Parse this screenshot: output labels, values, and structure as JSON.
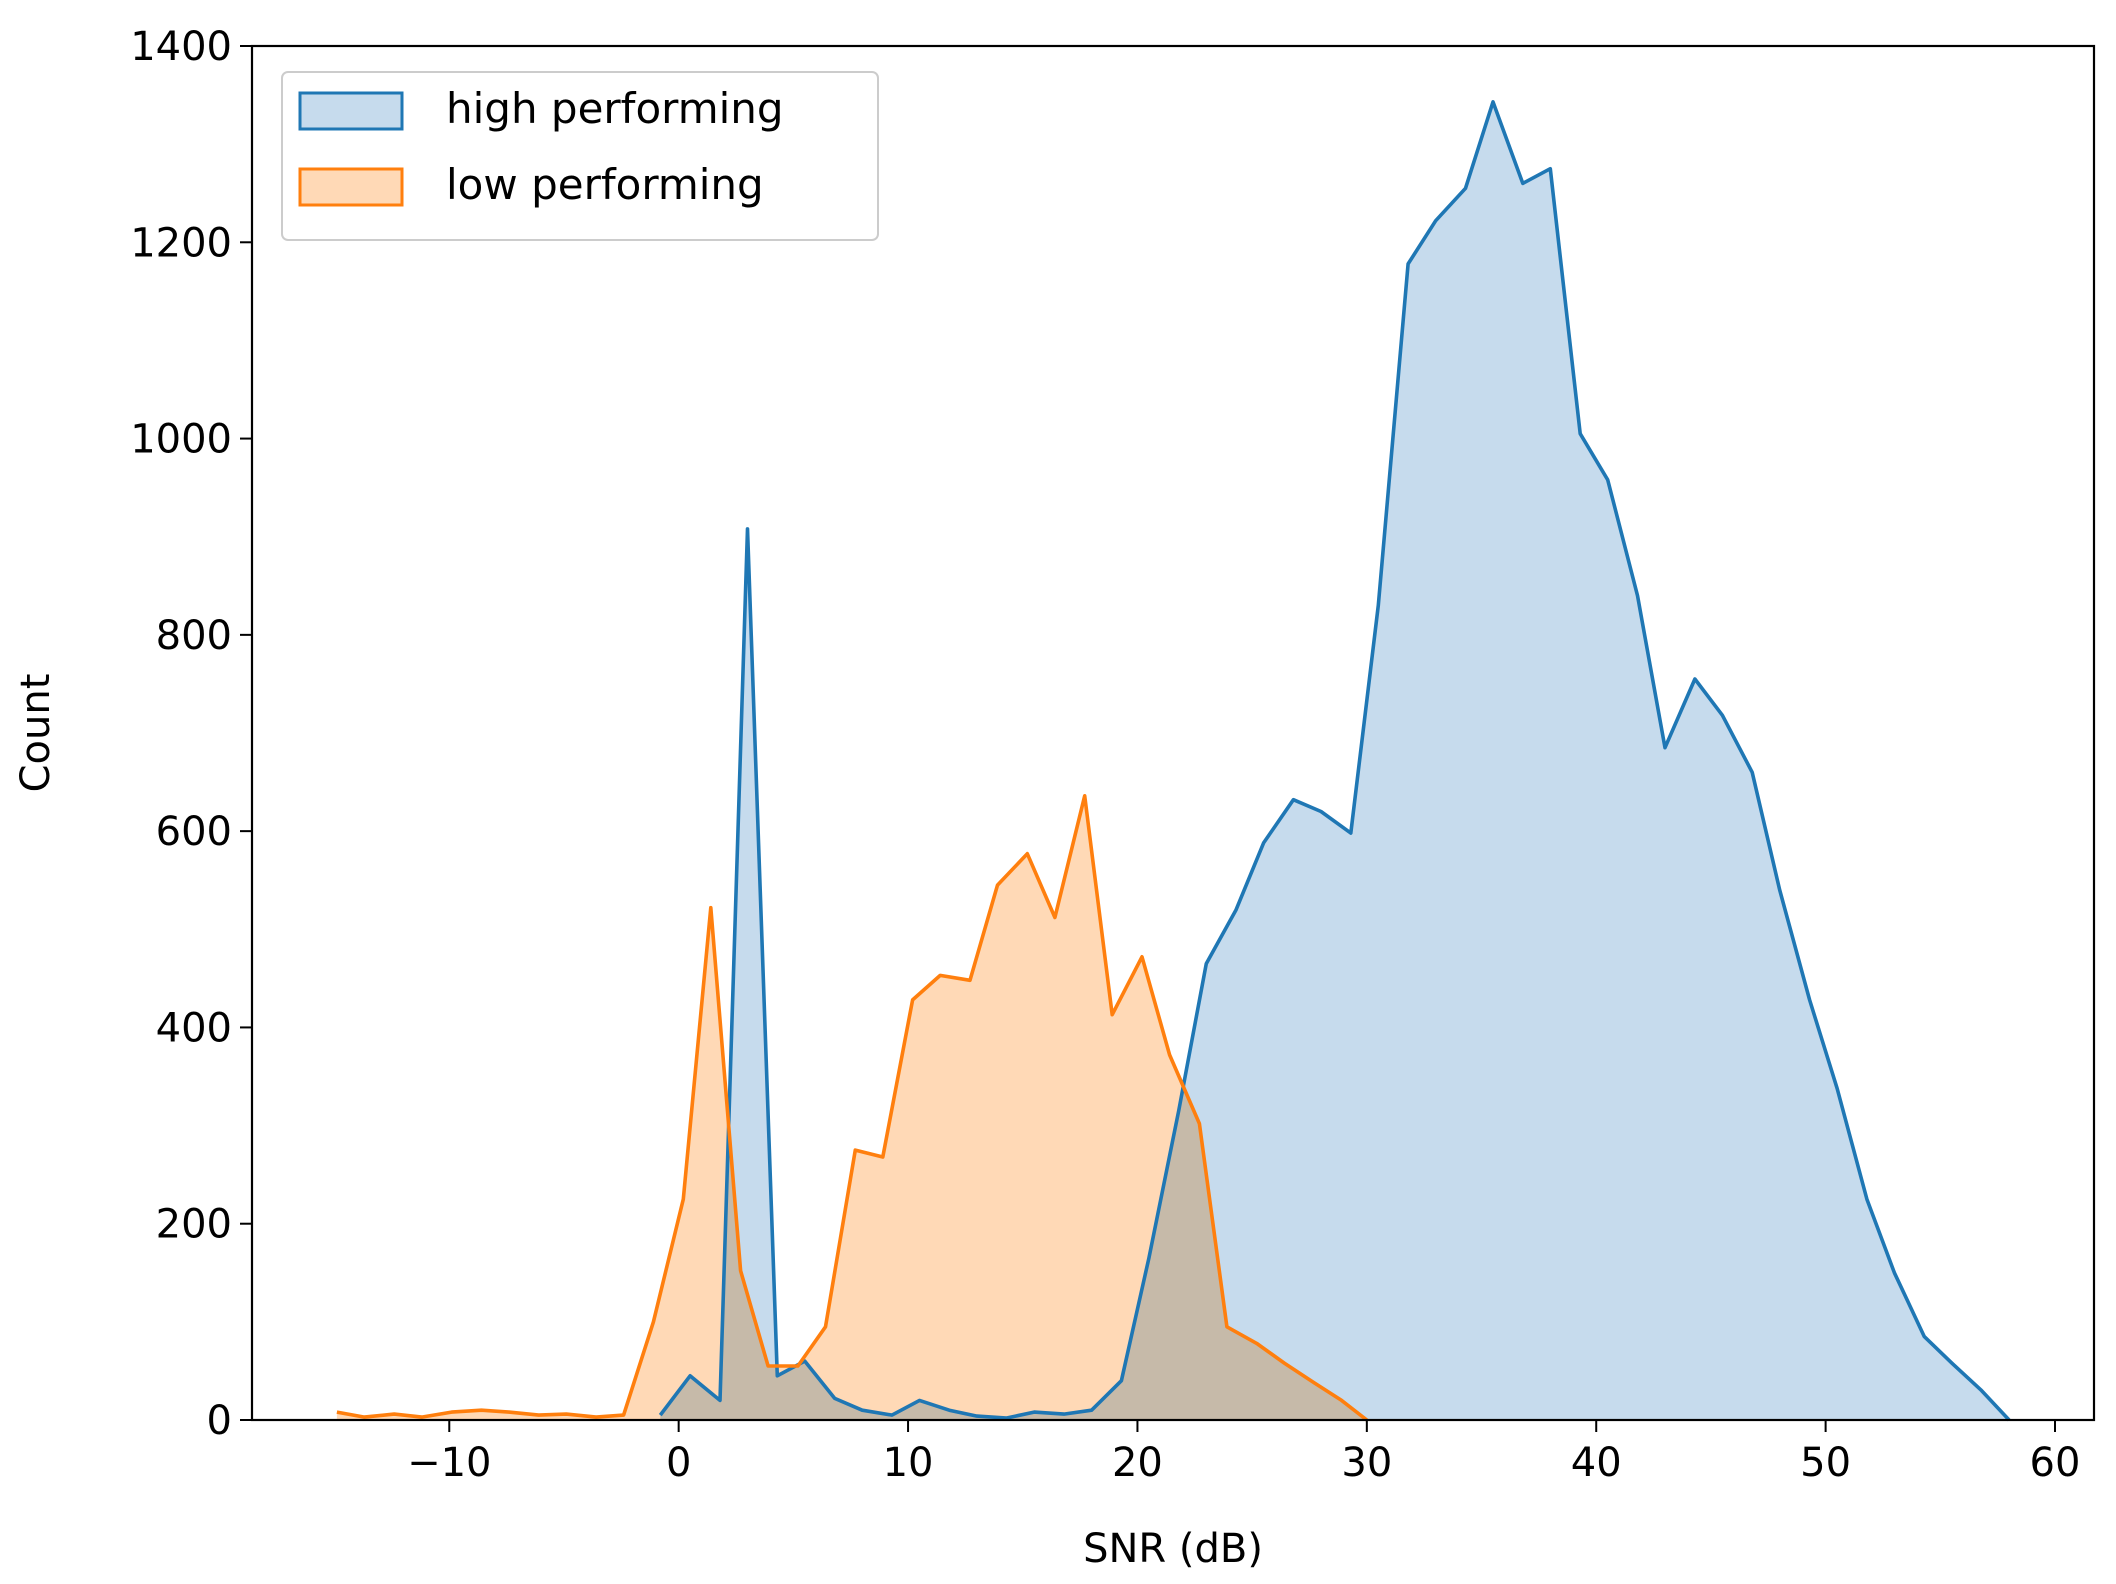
{
  "chart_data": {
    "type": "area",
    "xlabel": "SNR (dB)",
    "ylabel": "Count",
    "xlim": [
      -18.6,
      61.7
    ],
    "ylim": [
      0,
      1400
    ],
    "xticks": [
      -10,
      0,
      10,
      20,
      30,
      40,
      50,
      60
    ],
    "xtick_labels": [
      "−10",
      "0",
      "10",
      "20",
      "30",
      "40",
      "50",
      "60"
    ],
    "yticks": [
      0,
      200,
      400,
      600,
      800,
      1000,
      1200,
      1400
    ],
    "ytick_labels": [
      "0",
      "200",
      "400",
      "600",
      "800",
      "1000",
      "1200",
      "1400"
    ],
    "grid": false,
    "legend_position": "top-left",
    "series": [
      {
        "name": "high performing",
        "color": "#1f77b4",
        "fill": "#c6dbed",
        "x": [
          -0.8,
          0.5,
          1.8,
          3.0,
          4.3,
          5.5,
          6.8,
          8.0,
          9.3,
          10.5,
          11.8,
          13.0,
          14.3,
          15.5,
          16.8,
          18.0,
          19.3,
          20.5,
          21.8,
          23.0,
          24.3,
          25.5,
          26.8,
          28.0,
          29.3,
          30.5,
          31.8,
          33.0,
          34.3,
          35.5,
          36.8,
          38.0,
          39.3,
          40.5,
          41.8,
          43.0,
          44.3,
          45.5,
          46.8,
          48.0,
          49.3,
          50.5,
          51.8,
          53.0,
          54.3,
          55.5,
          56.8,
          58.0
        ],
        "y": [
          5,
          45,
          20,
          908,
          45,
          60,
          22,
          10,
          5,
          20,
          10,
          4,
          2,
          8,
          6,
          10,
          40,
          165,
          315,
          465,
          520,
          588,
          632,
          620,
          598,
          830,
          1178,
          1222,
          1255,
          1343,
          1260,
          1275,
          1005,
          958,
          840,
          685,
          755,
          718,
          660,
          540,
          428,
          338,
          225,
          150,
          85,
          58,
          30,
          0
        ]
      },
      {
        "name": "low performing",
        "color": "#ff7f0e",
        "fill": "#ffd9b6",
        "x": [
          -14.9,
          -13.7,
          -12.4,
          -11.2,
          -9.9,
          -8.6,
          -7.4,
          -6.1,
          -4.9,
          -3.6,
          -2.4,
          -1.1,
          0.2,
          1.4,
          2.7,
          3.9,
          5.2,
          6.4,
          7.7,
          8.9,
          10.2,
          11.4,
          12.7,
          13.9,
          15.2,
          16.4,
          17.7,
          18.9,
          20.2,
          21.4,
          22.7,
          23.9,
          25.2,
          26.4,
          27.7,
          28.9,
          30.0
        ],
        "y": [
          8,
          3,
          6,
          3,
          8,
          10,
          8,
          5,
          6,
          3,
          5,
          100,
          225,
          522,
          152,
          55,
          55,
          95,
          275,
          268,
          428,
          453,
          448,
          545,
          577,
          512,
          636,
          413,
          472,
          372,
          302,
          95,
          78,
          58,
          38,
          20,
          0
        ]
      }
    ]
  }
}
